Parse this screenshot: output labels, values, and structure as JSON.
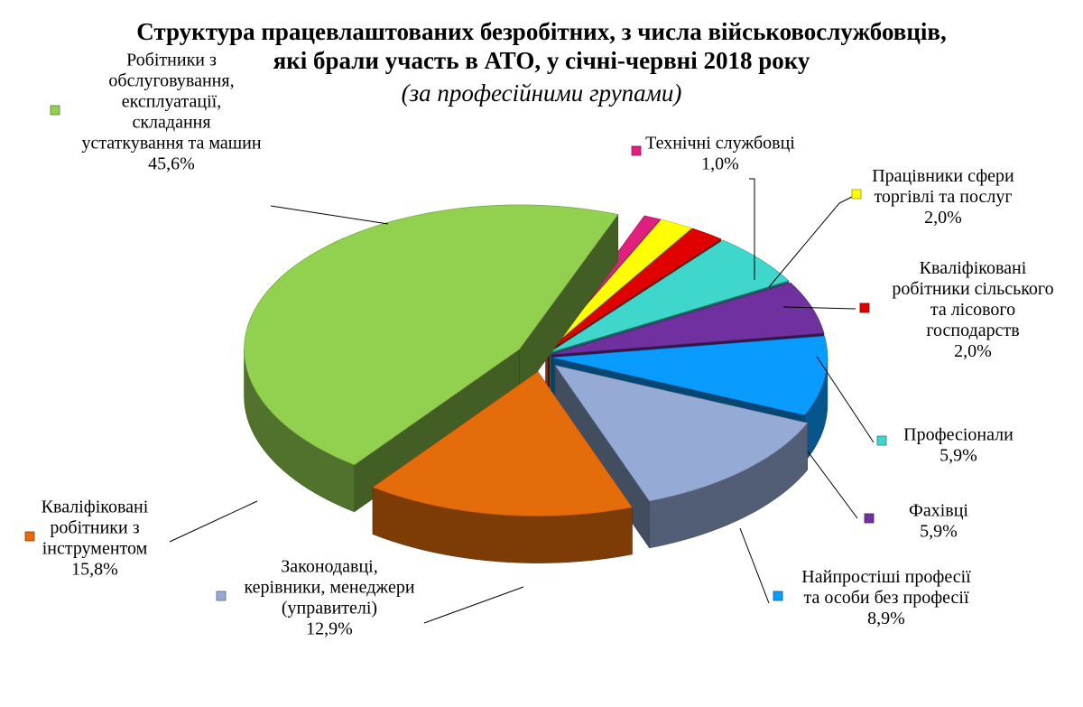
{
  "chart_data": {
    "type": "pie",
    "title": "Структура працевлаштованих безробітних, з числа військовослужбовців, які брали участь  в АТО, у січні-червні 2018 року",
    "title_lines": [
      "Структура працевлаштованих безробітних, з числа військовослужбовців,",
      "які брали участь  в АТО, у січні-червні 2018 року"
    ],
    "subtitle": "(за професійними групами)",
    "slices": [
      {
        "name": "Технічні службовці",
        "name_lines": [
          "Технічні службовці"
        ],
        "value": 1.0,
        "value_label": "1,0%",
        "color": "#e0207f"
      },
      {
        "name": "Працівники сфери торгівлі та послуг",
        "name_lines": [
          "Працівники сфери",
          "торгівлі та послуг"
        ],
        "value": 2.0,
        "value_label": "2,0%",
        "color": "#ffff00"
      },
      {
        "name": "Кваліфіковані робітники сільського та лісового господарств",
        "name_lines": [
          "Кваліфіковані",
          "робітники сільського",
          "та лісового",
          "господарств"
        ],
        "value": 2.0,
        "value_label": "2,0%",
        "color": "#e00000"
      },
      {
        "name": "Професіонали",
        "name_lines": [
          "Професіонали"
        ],
        "value": 5.9,
        "value_label": "5,9%",
        "color": "#3fd6cc"
      },
      {
        "name": "Фахівці",
        "name_lines": [
          "Фахівці"
        ],
        "value": 5.9,
        "value_label": "5,9%",
        "color": "#7030a0"
      },
      {
        "name": "Найпростіші професії та особи без професії",
        "name_lines": [
          "Найпростіші професії",
          "та особи без професії"
        ],
        "value": 8.9,
        "value_label": "8,9%",
        "color": "#0a9bff"
      },
      {
        "name": "Законодавці, керівники, менеджери (управителі)",
        "name_lines": [
          "Законодавці,",
          "керівники, менеджери",
          "(управителі)"
        ],
        "value": 12.9,
        "value_label": "12,9%",
        "color": "#95abd6"
      },
      {
        "name": "Кваліфіковані робітники з інструментом",
        "name_lines": [
          "Кваліфіковані",
          "робітники з",
          "інструментом"
        ],
        "value": 15.8,
        "value_label": "15,8%",
        "color": "#e46c0a"
      },
      {
        "name": "Робітники з обслуговування, експлуатації, складання устаткування та машин",
        "name_lines": [
          "Робітники з",
          "обслуговування,",
          "експлуатації,",
          "складання",
          "устаткування та машин"
        ],
        "value": 45.6,
        "value_label": "45,6%",
        "color": "#92d050"
      }
    ],
    "legend": "labels-around-pie",
    "style": "3d-exploded"
  }
}
